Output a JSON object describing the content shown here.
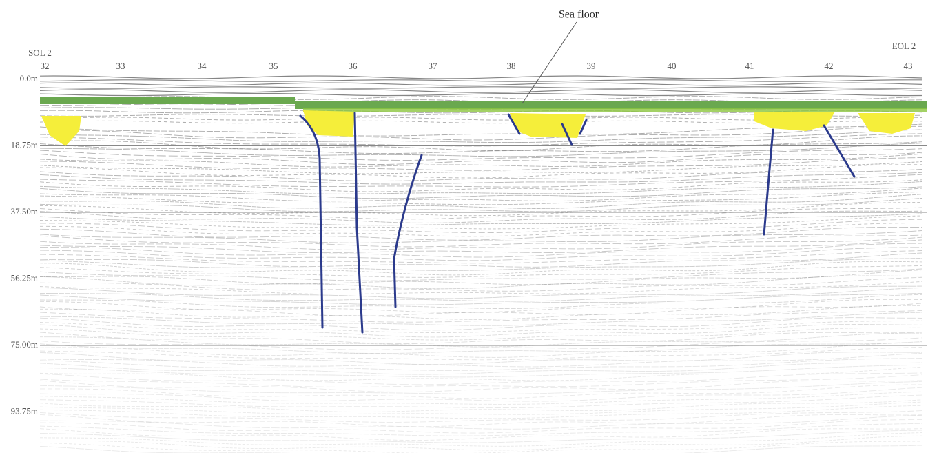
{
  "title": "Sea floor",
  "start_label": "SOL 2",
  "end_label": "EOL 2",
  "shot_points": [
    "32",
    "33",
    "34",
    "35",
    "36",
    "37",
    "38",
    "39",
    "40",
    "41",
    "42",
    "43"
  ],
  "depths": [
    "0.0m",
    "18.75m",
    "37.50m",
    "56.25m",
    "75.00m",
    "93.75m"
  ]
}
